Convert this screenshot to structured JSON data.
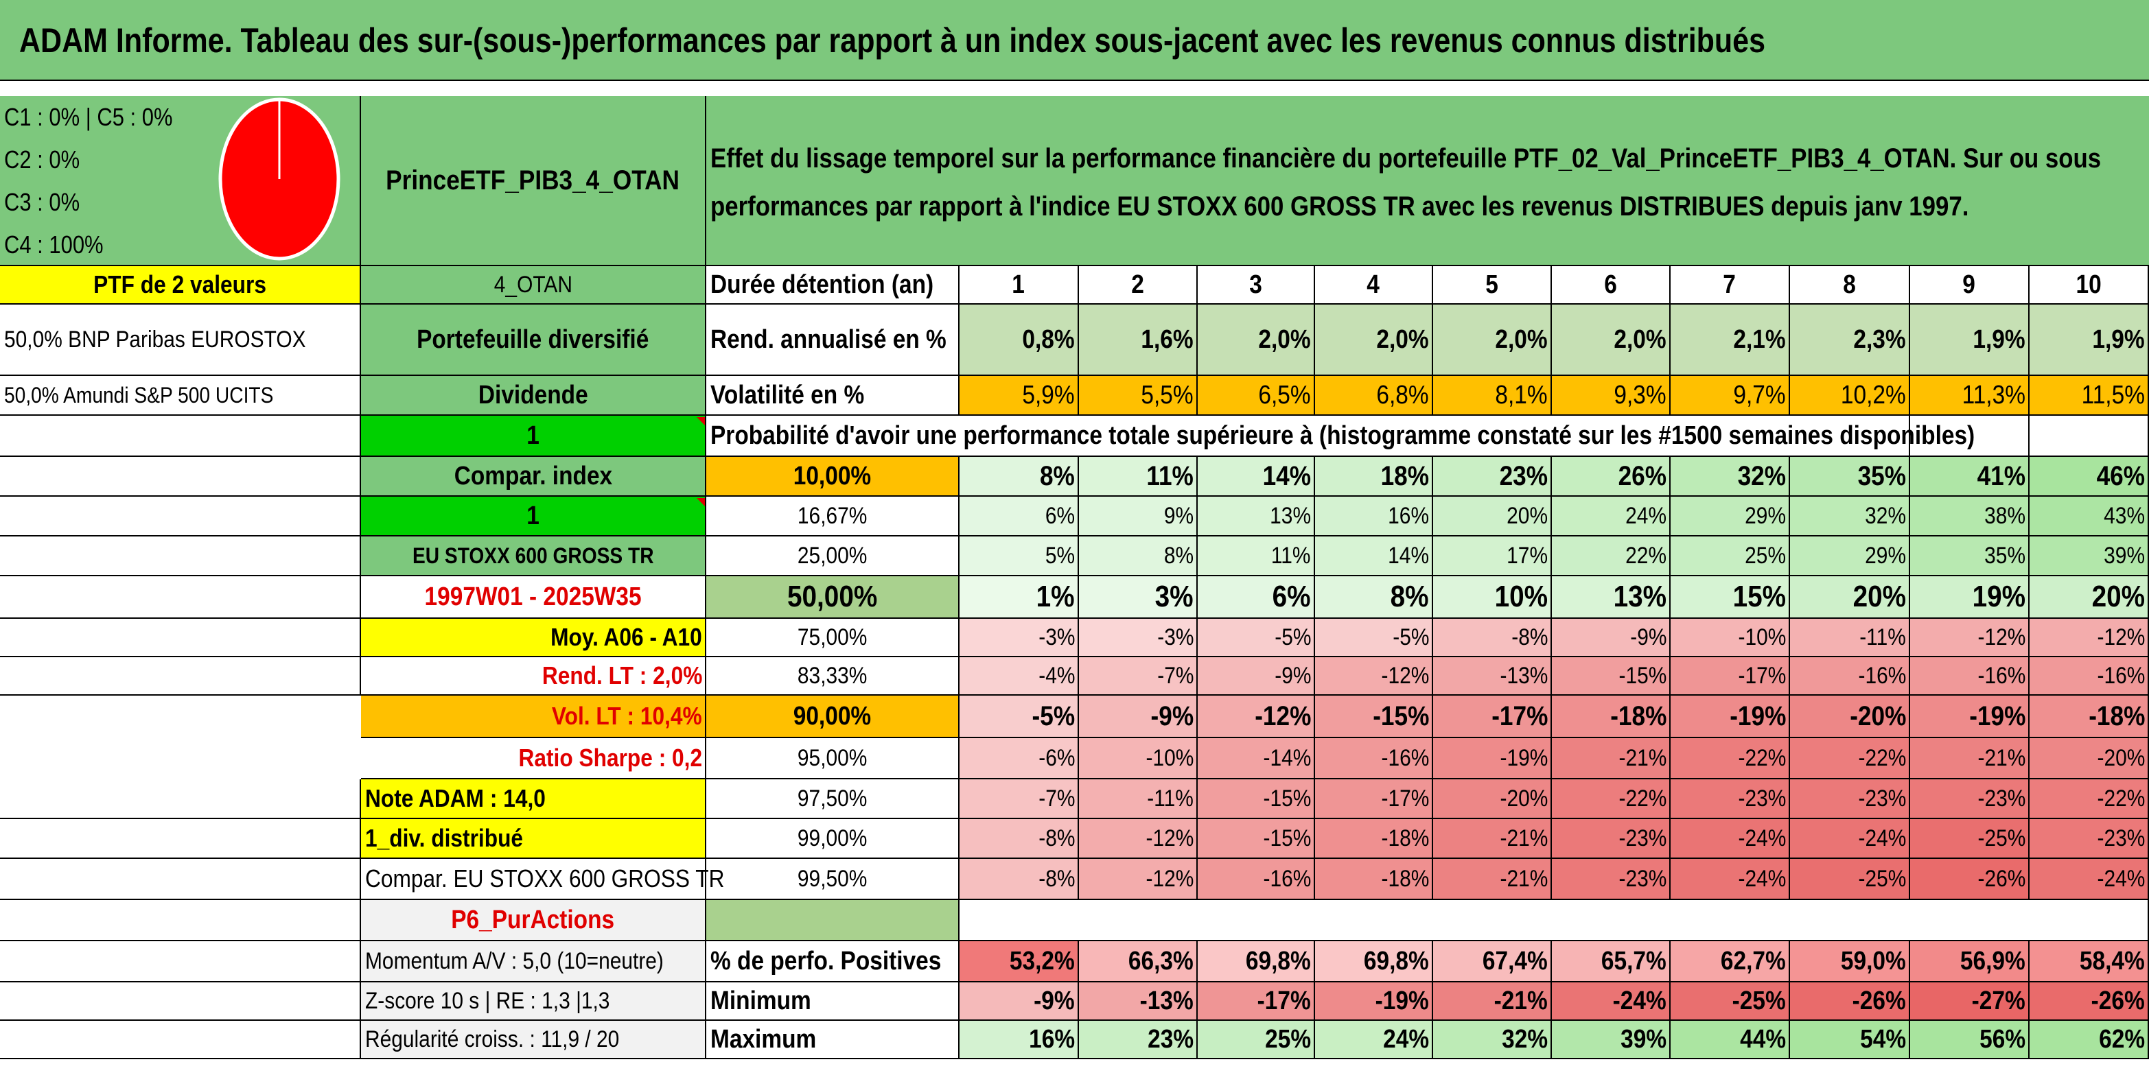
{
  "title": "ADAM Informe. Tableau des sur-(sous-)performances par rapport à un index sous-jacent avec les revenus connus distribués",
  "allocation": {
    "lines": [
      "C1 : 0% | C5 : 0%",
      "C2 : 0%",
      "C3 : 0%",
      "C4 : 100%"
    ],
    "pie_color": "#ff0000"
  },
  "fund_name": "PrinceETF_PIB3_4_OTAN",
  "description": {
    "line1": "Effet du lissage temporel sur la performance financière du portefeuille PTF_02_Val_PrinceETF_PIB3_4_OTAN. Sur ou sous",
    "line2": "performances par rapport à l'indice EU STOXX 600 GROSS TR avec les revenus DISTRIBUES depuis janv 1997."
  },
  "left_col": {
    "ptf": "PTF de 2 valeurs",
    "holding1": "50,0% BNP Paribas EUROSTOX",
    "holding2": "50,0% Amundi S&P 500 UCITS",
    "note": "Note ADAM : 14,0",
    "div": "1_div. distribué",
    "compar": "Compar. EU STOXX 600 GROSS TR",
    "momentum": "Momentum A/V : 5,0 (10=neutre)",
    "zscore": "Z-score 10 s | RE : 1,3 |1,3",
    "regul": "Régularité croiss. : 11,9 / 20"
  },
  "mid_col": {
    "code": "4_OTAN",
    "diversified": "Portefeuille diversifié",
    "dividend": "Dividende",
    "one_a": "1",
    "compar_index": "Compar. index",
    "one_b": "1",
    "index_name": "EU STOXX 600 GROSS TR",
    "period": "1997W01 - 2025W35",
    "moy": "Moy. A06 - A10",
    "rend_lt": "Rend. LT : 2,0%",
    "vol_lt": "Vol. LT : 10,4%",
    "sharpe": "Ratio Sharpe : 0,2",
    "p6": "P6_PurActions"
  },
  "table": {
    "duration_label": "Durée détention (an)",
    "years": [
      "1",
      "2",
      "3",
      "4",
      "5",
      "6",
      "7",
      "8",
      "9",
      "10"
    ],
    "rend_label": "Rend. annualisé en %",
    "rend": [
      "0,8%",
      "1,6%",
      "2,0%",
      "2,0%",
      "2,0%",
      "2,0%",
      "2,1%",
      "2,3%",
      "1,9%",
      "1,9%"
    ],
    "vol_label": "Volatilité en %",
    "vol": [
      "5,9%",
      "5,5%",
      "6,5%",
      "6,8%",
      "8,1%",
      "9,3%",
      "9,7%",
      "10,2%",
      "11,3%",
      "11,5%"
    ],
    "prob_header": "Probabilité d'avoir une performance totale supérieure à (histogramme constaté sur les #1500 semaines disponibles)",
    "quantiles": [
      {
        "label": "10,00%",
        "values": [
          "8%",
          "11%",
          "14%",
          "18%",
          "23%",
          "26%",
          "32%",
          "35%",
          "41%",
          "46%"
        ]
      },
      {
        "label": "16,67%",
        "values": [
          "6%",
          "9%",
          "13%",
          "16%",
          "20%",
          "24%",
          "29%",
          "32%",
          "38%",
          "43%"
        ]
      },
      {
        "label": "25,00%",
        "values": [
          "5%",
          "8%",
          "11%",
          "14%",
          "17%",
          "22%",
          "25%",
          "29%",
          "35%",
          "39%"
        ]
      },
      {
        "label": "50,00%",
        "values": [
          "1%",
          "3%",
          "6%",
          "8%",
          "10%",
          "13%",
          "15%",
          "20%",
          "19%",
          "20%"
        ]
      },
      {
        "label": "75,00%",
        "values": [
          "-3%",
          "-3%",
          "-5%",
          "-5%",
          "-8%",
          "-9%",
          "-10%",
          "-11%",
          "-12%",
          "-12%"
        ]
      },
      {
        "label": "83,33%",
        "values": [
          "-4%",
          "-7%",
          "-9%",
          "-12%",
          "-13%",
          "-15%",
          "-17%",
          "-16%",
          "-16%",
          "-16%"
        ]
      },
      {
        "label": "90,00%",
        "values": [
          "-5%",
          "-9%",
          "-12%",
          "-15%",
          "-17%",
          "-18%",
          "-19%",
          "-20%",
          "-19%",
          "-18%"
        ]
      },
      {
        "label": "95,00%",
        "values": [
          "-6%",
          "-10%",
          "-14%",
          "-16%",
          "-19%",
          "-21%",
          "-22%",
          "-22%",
          "-21%",
          "-20%"
        ]
      },
      {
        "label": "97,50%",
        "values": [
          "-7%",
          "-11%",
          "-15%",
          "-17%",
          "-20%",
          "-22%",
          "-23%",
          "-23%",
          "-23%",
          "-22%"
        ]
      },
      {
        "label": "99,00%",
        "values": [
          "-8%",
          "-12%",
          "-15%",
          "-18%",
          "-21%",
          "-23%",
          "-24%",
          "-24%",
          "-25%",
          "-23%"
        ]
      },
      {
        "label": "99,50%",
        "values": [
          "-8%",
          "-12%",
          "-16%",
          "-18%",
          "-21%",
          "-23%",
          "-24%",
          "-25%",
          "-26%",
          "-24%"
        ]
      }
    ],
    "pos_label": "% de perfo. Positives",
    "pos": [
      "53,2%",
      "66,3%",
      "69,8%",
      "69,8%",
      "67,4%",
      "65,7%",
      "62,7%",
      "59,0%",
      "56,9%",
      "58,4%"
    ],
    "min_label": "Minimum",
    "min": [
      "-9%",
      "-13%",
      "-17%",
      "-19%",
      "-21%",
      "-24%",
      "-25%",
      "-26%",
      "-27%",
      "-26%"
    ],
    "max_label": "Maximum",
    "max": [
      "16%",
      "23%",
      "25%",
      "24%",
      "32%",
      "39%",
      "44%",
      "54%",
      "56%",
      "62%"
    ]
  }
}
